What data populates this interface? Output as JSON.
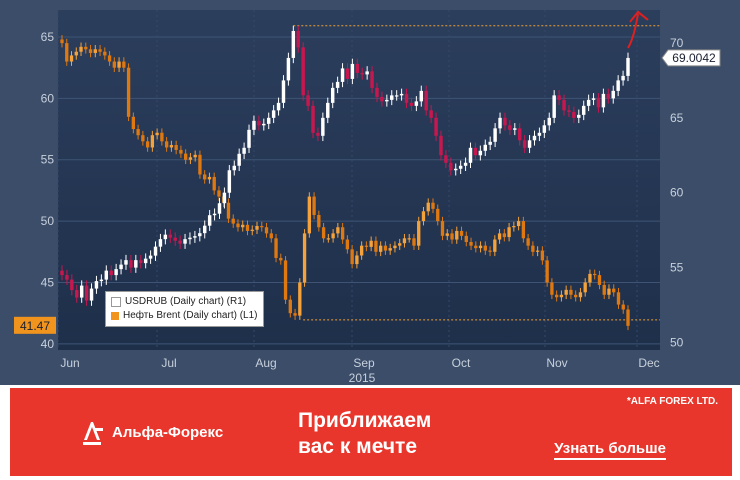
{
  "chart_data": {
    "type": "candlestick",
    "year_label": "2015",
    "x_ticks": [
      "Jun",
      "Jul",
      "Aug",
      "Sep",
      "Oct",
      "Nov",
      "Dec"
    ],
    "left_axis": {
      "ticks": [
        40,
        45,
        50,
        55,
        60,
        65
      ],
      "ylim": [
        39.5,
        67.2
      ]
    },
    "right_axis": {
      "ticks": [
        50,
        55,
        60,
        65,
        70
      ],
      "ylim": [
        49.5,
        72.2
      ]
    },
    "last_value_left": "41.47",
    "last_value_right": "69.0042",
    "grid": true,
    "legend_position": "bottom-left",
    "series": [
      {
        "name": "USDRUB (Daily chart) (R1)",
        "axis": "right",
        "color": "#ffffff",
        "closes": [
          54.5,
          54.2,
          53.5,
          53.0,
          53.8,
          52.8,
          53.6,
          54.1,
          54.2,
          54.8,
          54.5,
          54.9,
          55.2,
          55.5,
          55.0,
          55.5,
          55.3,
          55.6,
          55.8,
          56.4,
          56.9,
          57.2,
          57.0,
          56.8,
          56.6,
          56.9,
          57.0,
          57.1,
          57.3,
          57.8,
          58.5,
          58.6,
          59.3,
          60.0,
          61.5,
          61.8,
          62.6,
          63.0,
          64.2,
          64.8,
          64.5,
          64.6,
          65.0,
          65.5,
          66.0,
          67.5,
          69.0,
          70.8,
          69.7,
          66.5,
          65.8,
          64.0,
          63.8,
          65.0,
          66.0,
          67.0,
          67.4,
          68.3,
          67.6,
          68.6,
          68.0,
          67.9,
          68.1,
          67.0,
          66.4,
          66.1,
          66.2,
          66.5,
          66.5,
          66.6,
          66.0,
          65.8,
          66.1,
          66.8,
          65.5,
          65.0,
          63.8,
          62.5,
          62.0,
          61.5,
          61.6,
          61.8,
          62.0,
          63.0,
          62.5,
          62.8,
          63.2,
          63.4,
          64.3,
          65.0,
          64.5,
          64.2,
          64.3,
          63.5,
          63.0,
          63.5,
          63.8,
          64.0,
          64.5,
          65.0,
          66.5,
          66.2,
          65.5,
          65.4,
          65.0,
          65.2,
          65.8,
          66.2,
          66.3,
          65.7,
          66.6,
          66.3,
          66.8,
          67.5,
          67.8,
          69.0
        ]
      },
      {
        "name": "Нефть Brent (Daily chart) (L1)",
        "axis": "left",
        "color": "#f0941e",
        "closes": [
          64.5,
          63.0,
          63.5,
          63.8,
          64.2,
          64.0,
          63.7,
          64.0,
          63.8,
          63.5,
          63.0,
          62.5,
          63.0,
          62.5,
          58.5,
          57.5,
          57.0,
          56.5,
          56.0,
          57.0,
          57.2,
          56.5,
          56.0,
          56.2,
          55.8,
          55.5,
          55.0,
          55.2,
          55.4,
          53.8,
          53.4,
          53.6,
          52.5,
          52.0,
          51.5,
          50.2,
          49.8,
          49.5,
          49.7,
          49.2,
          49.3,
          49.6,
          49.5,
          49.0,
          48.6,
          47.0,
          46.8,
          43.6,
          42.5,
          42.3,
          45.0,
          49.0,
          52.0,
          50.5,
          49.5,
          48.6,
          48.6,
          49.0,
          49.5,
          48.5,
          47.7,
          46.5,
          47.2,
          48.0,
          47.9,
          48.4,
          47.5,
          48.0,
          47.6,
          47.8,
          48.0,
          48.2,
          48.6,
          48.6,
          48.0,
          50.0,
          50.8,
          51.5,
          51.0,
          50.0,
          48.8,
          49.0,
          48.5,
          49.2,
          48.8,
          48.3,
          48.0,
          47.8,
          48.0,
          47.6,
          47.5,
          48.5,
          49.0,
          48.7,
          49.5,
          49.6,
          50.0,
          48.6,
          48.0,
          47.5,
          47.6,
          46.8,
          45.0,
          44.0,
          43.8,
          44.0,
          44.4,
          44.0,
          43.8,
          44.2,
          45.0,
          45.7,
          45.6,
          44.8,
          44.0,
          44.5,
          44.2,
          43.2,
          42.8,
          41.47
        ]
      }
    ]
  },
  "banner": {
    "disclaimer": "*ALFA FOREX LTD.",
    "logo_text": "Альфа-Форекс",
    "slogan_line1": "Приближаем",
    "slogan_line2": "вас к мечте",
    "cta": "Узнать больше",
    "color": "#e8362c"
  }
}
